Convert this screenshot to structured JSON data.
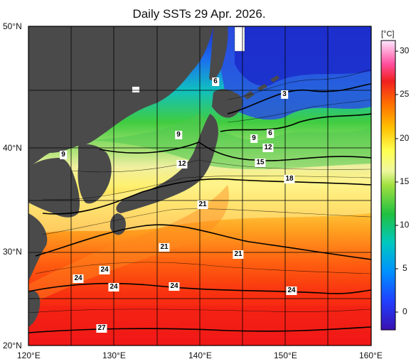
{
  "title": "Daily SSTs 29 Apr. 2026.",
  "colorbar": {
    "unit": "[°C]",
    "ticks": [
      "30",
      "25",
      "20",
      "15",
      "10",
      "5",
      "0"
    ],
    "colors": [
      "#3a10b0",
      "#2040ff",
      "#00a0ff",
      "#00d0b0",
      "#20c040",
      "#80e040",
      "#e0f080",
      "#ffff60",
      "#ffd000",
      "#ff9000",
      "#ff4000",
      "#e00020",
      "#ff40a0",
      "#ffa0e0",
      "#ffe0ff"
    ]
  },
  "axes": {
    "lat_labels": [
      "50°N",
      "40°N",
      "30°N",
      "20°N"
    ],
    "lon_labels": [
      "120°E",
      "130°E",
      "140°E",
      "150°E",
      "160°E"
    ]
  },
  "contour_labels": [
    {
      "text": "6"
    },
    {
      "text": "3"
    },
    {
      "text": "9"
    },
    {
      "text": "9"
    },
    {
      "text": "6"
    },
    {
      "text": "9"
    },
    {
      "text": "12"
    },
    {
      "text": "12"
    },
    {
      "text": "15"
    },
    {
      "text": "18"
    },
    {
      "text": "21"
    },
    {
      "text": "21"
    },
    {
      "text": "21"
    },
    {
      "text": "24"
    },
    {
      "text": "24"
    },
    {
      "text": "24"
    },
    {
      "text": "24"
    },
    {
      "text": "24"
    },
    {
      "text": "27"
    }
  ],
  "colors": {
    "land": "#4a4a4a",
    "grid": "#000000"
  }
}
